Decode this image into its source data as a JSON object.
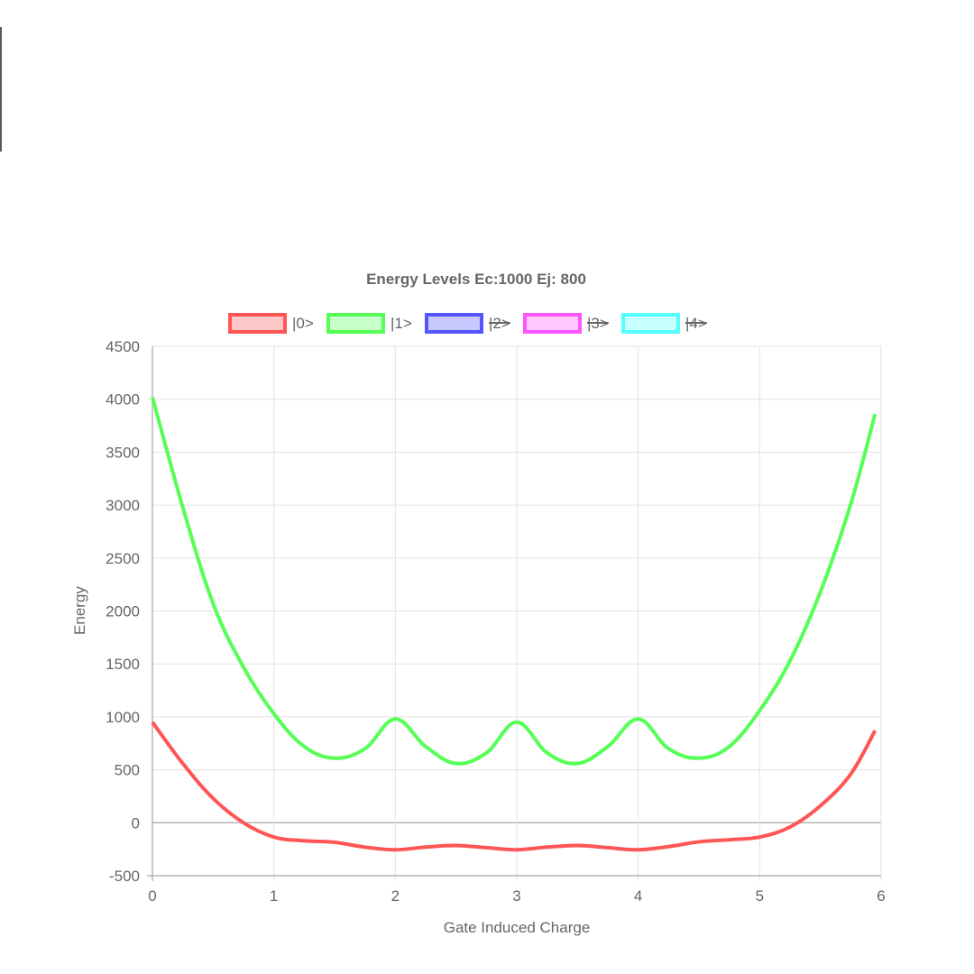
{
  "chart_data": {
    "type": "line",
    "title": "Energy Levels Ec:1000 Ej: 800",
    "xlabel": "Gate Induced Charge",
    "ylabel": "Energy",
    "xlim": [
      0,
      6
    ],
    "ylim": [
      -500,
      4500
    ],
    "x_ticks": [
      "0",
      "1",
      "2",
      "3",
      "4",
      "5",
      "6"
    ],
    "y_ticks": [
      "-500",
      "0",
      "500",
      "1000",
      "1500",
      "2000",
      "2500",
      "3000",
      "3500",
      "4000",
      "4500"
    ],
    "grid": true,
    "legend_position": "top",
    "legend": [
      {
        "label": "|0>",
        "color": "#ff5555",
        "fill": "#ffc8c8",
        "hidden": false
      },
      {
        "label": "|1>",
        "color": "#55ff55",
        "fill": "#c8ffc8",
        "hidden": false
      },
      {
        "label": "|2>",
        "color": "#5555ff",
        "fill": "#c8c8ff",
        "hidden": true
      },
      {
        "label": "|3>",
        "color": "#ff55ff",
        "fill": "#ffc8ff",
        "hidden": true
      },
      {
        "label": "|4>",
        "color": "#55ffff",
        "fill": "#c8ffff",
        "hidden": true
      }
    ],
    "x": [
      0,
      0.25,
      0.5,
      0.75,
      1.0,
      1.25,
      1.5,
      1.75,
      2.0,
      2.25,
      2.5,
      2.75,
      3.0,
      3.25,
      3.5,
      3.75,
      4.0,
      4.25,
      4.5,
      4.75,
      5.0,
      5.25,
      5.5,
      5.75,
      5.95
    ],
    "series": [
      {
        "name": "|0>",
        "color": "#ff5555",
        "values": [
          950,
          560,
          230,
          0,
          -135,
          -170,
          -185,
          -230,
          -255,
          -230,
          -215,
          -235,
          -255,
          -230,
          -215,
          -235,
          -255,
          -225,
          -180,
          -160,
          -135,
          -40,
          160,
          460,
          870
        ]
      },
      {
        "name": "|1>",
        "color": "#55ff55",
        "values": [
          4020,
          2980,
          2070,
          1470,
          1030,
          720,
          610,
          700,
          980,
          720,
          560,
          660,
          950,
          660,
          560,
          720,
          980,
          700,
          610,
          720,
          1060,
          1530,
          2180,
          3010,
          3860
        ]
      }
    ]
  }
}
